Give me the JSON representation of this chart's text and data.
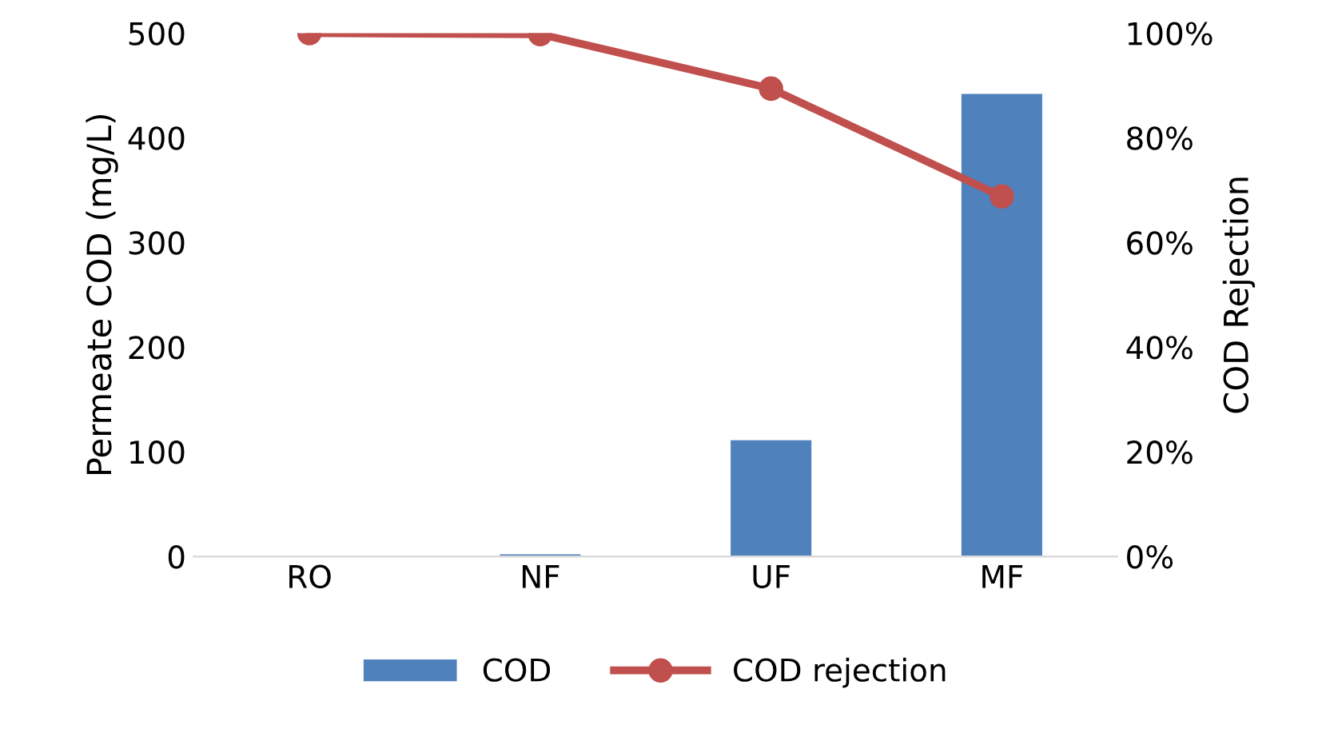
{
  "chart_data": {
    "type": "bar",
    "ylabel": "Permeate COD (mg/L)",
    "y2label": "COD Rejection",
    "categories": [
      "RO",
      "NF",
      "UF",
      "MF"
    ],
    "series": [
      {
        "name": "COD",
        "color": "#4f81bd",
        "values": [
          0,
          2,
          111,
          442
        ]
      },
      {
        "name": "COD rejection",
        "type": "line",
        "axis": "y2",
        "color": "#c0504d",
        "values": [
          100,
          99.8,
          89.4,
          68.8
        ],
        "marker": "circle"
      }
    ],
    "ylim": [
      0,
      500
    ],
    "yticks": [
      0,
      100,
      200,
      300,
      400,
      500
    ],
    "y2lim": [
      0,
      100
    ],
    "y2ticks": [
      {
        "value": 0,
        "label": "0%"
      },
      {
        "value": 20,
        "label": "20%"
      },
      {
        "value": 40,
        "label": "40%"
      },
      {
        "value": 60,
        "label": "60%"
      },
      {
        "value": 80,
        "label": "80%"
      },
      {
        "value": 100,
        "label": "100%"
      }
    ],
    "grid": false,
    "legend": "bottom"
  }
}
